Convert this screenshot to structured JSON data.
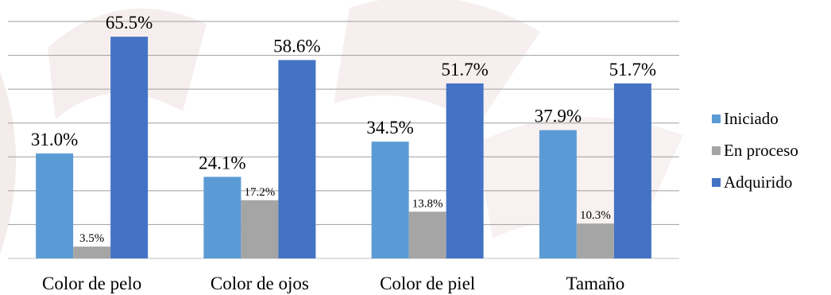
{
  "chart_data": {
    "type": "bar",
    "title": "",
    "xlabel": "",
    "ylabel": "",
    "ylim": [
      0,
      70
    ],
    "grid": true,
    "legend_position": "right",
    "categories": [
      "Color de pelo",
      "Color de ojos",
      "Color de piel",
      "Tamaño"
    ],
    "series": [
      {
        "name": "Iniciado",
        "color": "#5B9BD5",
        "values": [
          31.0,
          24.1,
          34.5,
          37.9
        ],
        "labels": [
          "31.0%",
          "24.1%",
          "34.5%",
          "37.9%"
        ]
      },
      {
        "name": "En proceso",
        "color": "#A5A5A5",
        "values": [
          3.5,
          17.2,
          13.8,
          10.3
        ],
        "labels": [
          "3.5%",
          "17.2%",
          "13.8%",
          "10.3%"
        ]
      },
      {
        "name": "Adquirido",
        "color": "#4472C4",
        "values": [
          65.5,
          58.6,
          51.7,
          51.7
        ],
        "labels": [
          "65.5%",
          "58.6%",
          "51.7%",
          "51.7%"
        ]
      }
    ]
  }
}
